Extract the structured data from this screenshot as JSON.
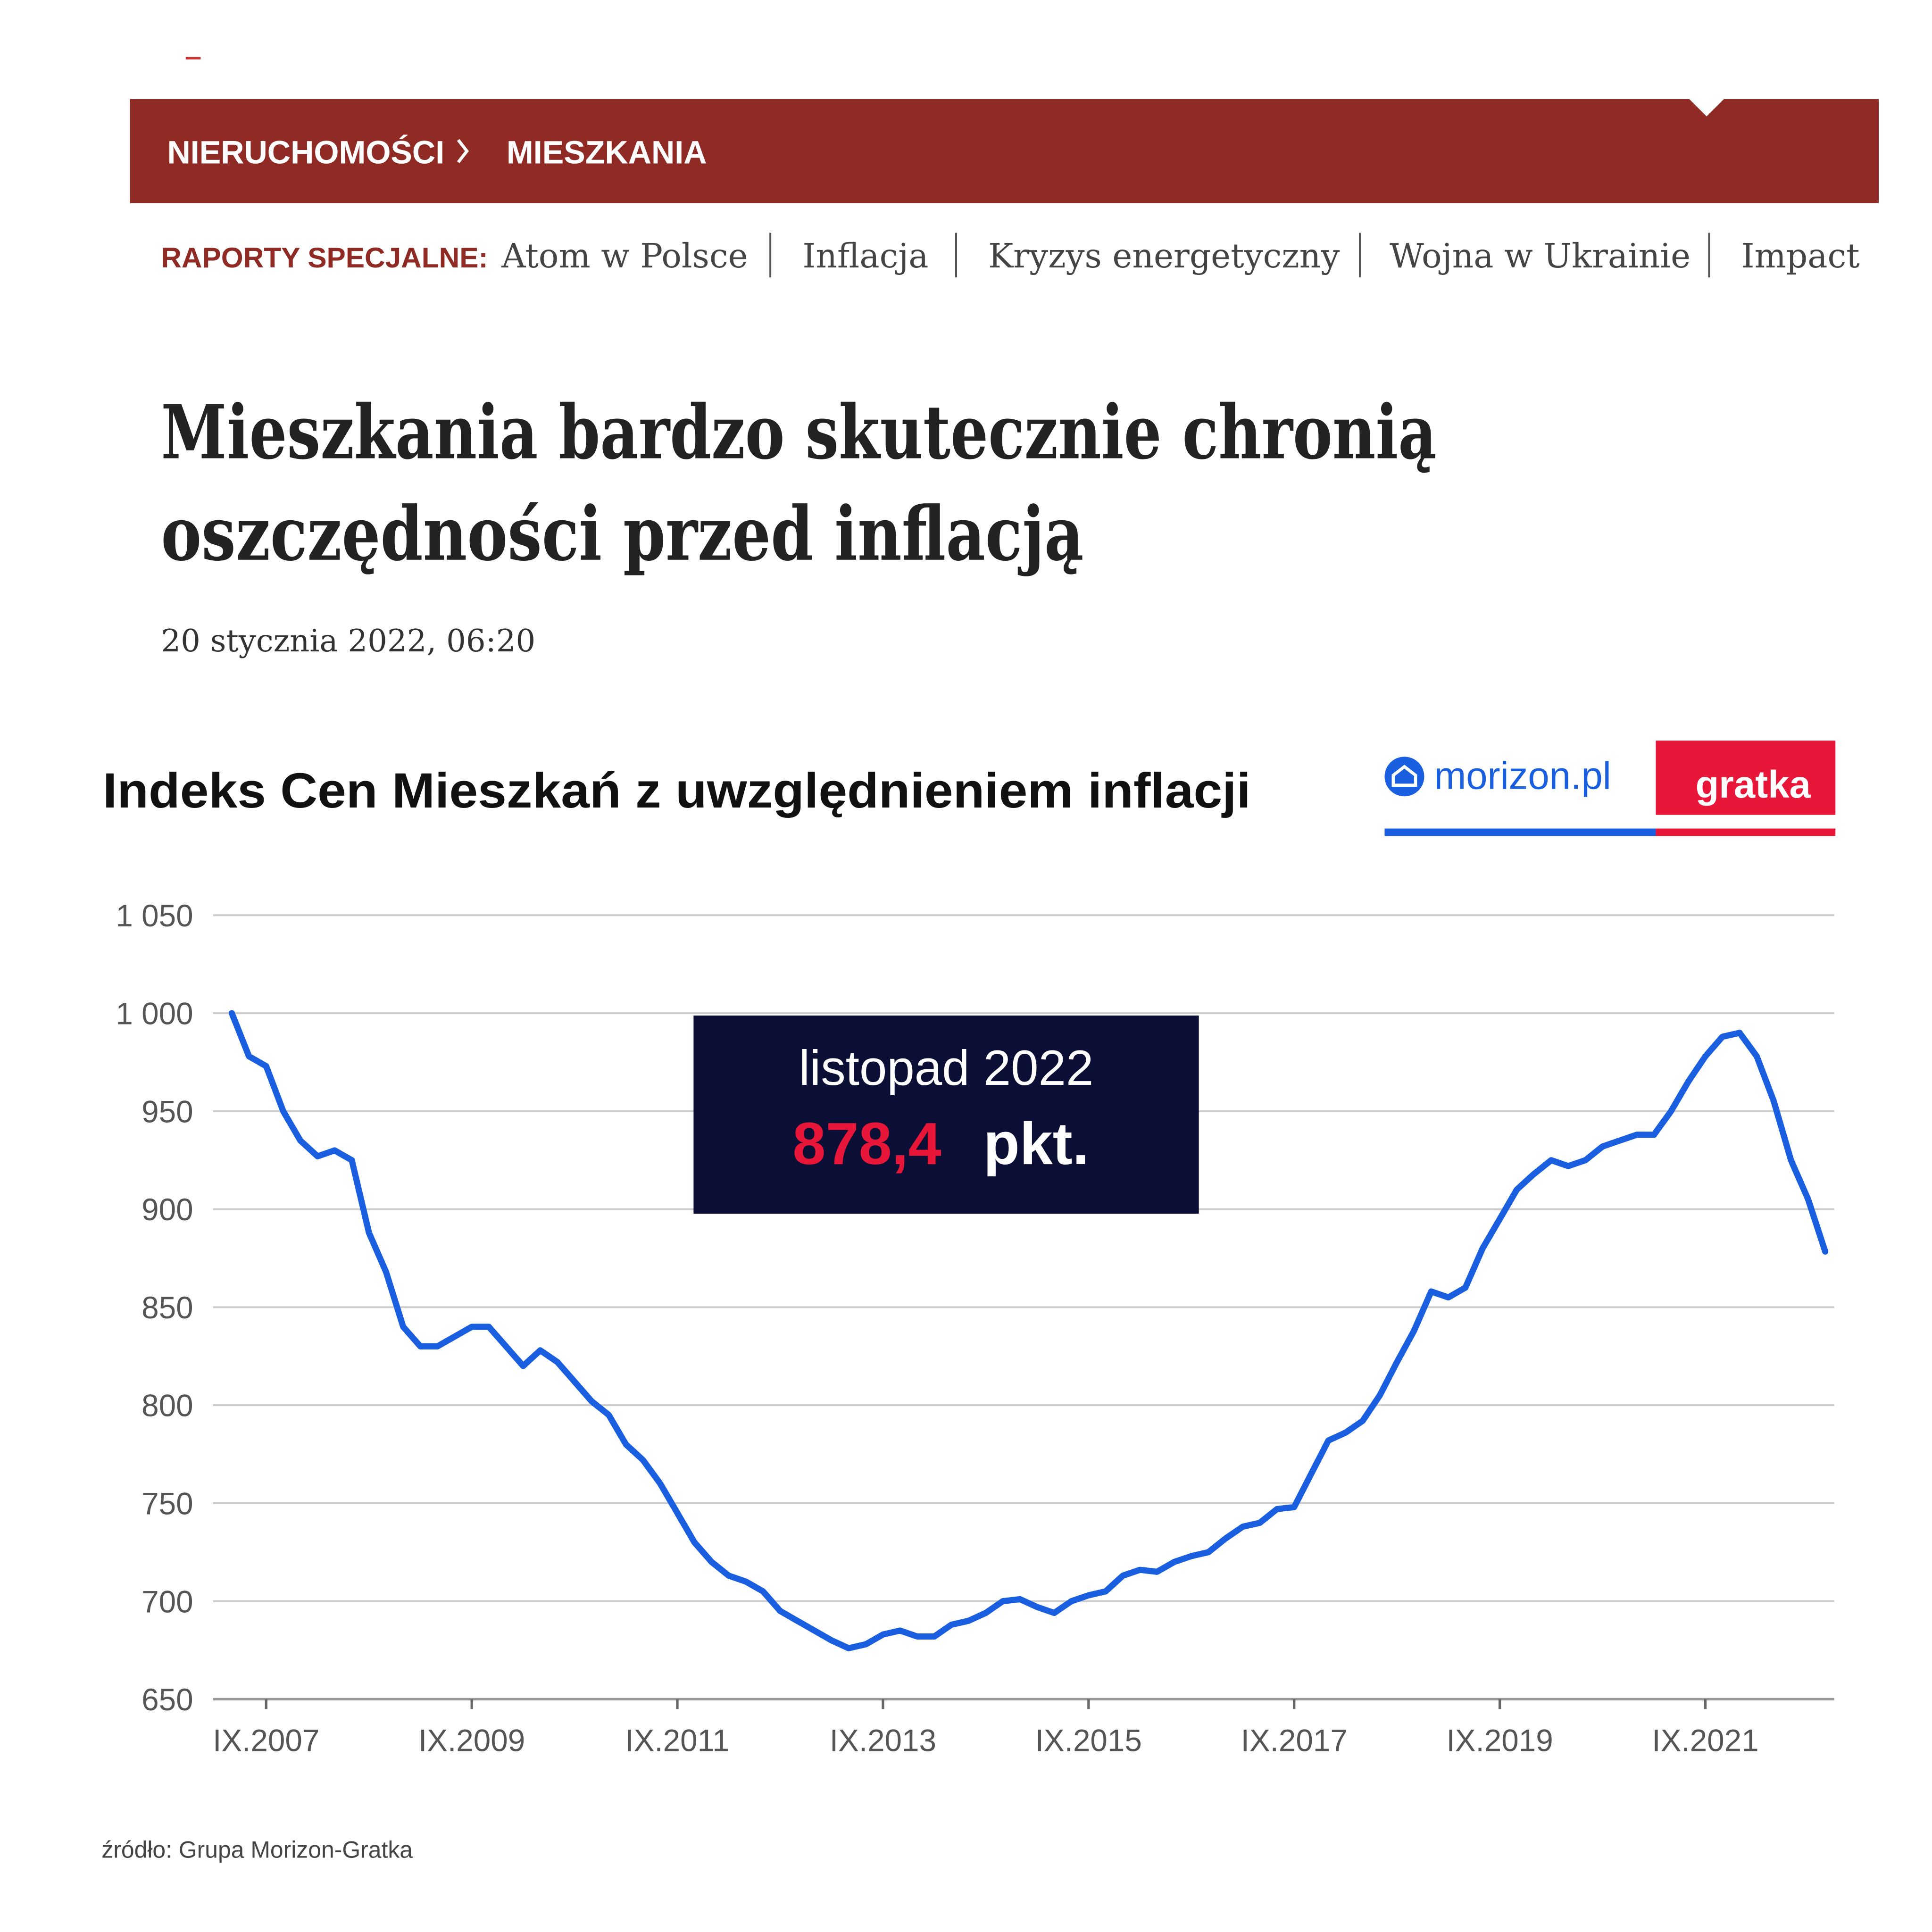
{
  "header": {
    "breadcrumb": [
      "NIERUCHOMOŚCI",
      "MIESZKANIA"
    ]
  },
  "nav": {
    "label": "RAPORTY SPECJALNE:",
    "items": [
      "Atom w Polsce",
      "Inflacja",
      "Kryzys energetyczny",
      "Wojna w Ukrainie",
      "Impact"
    ]
  },
  "article": {
    "title_lines": [
      "Mieszkania bardzo skutecznie chronią",
      "oszczędności przed inflacją"
    ],
    "date": "20 stycznia 2022, 06:20"
  },
  "logos": [
    "morizon.pl",
    "gratka"
  ],
  "chart_data": {
    "type": "line",
    "title": "Indeks Cen Mieszkań z uwzględnieniem inflacji",
    "annotation": {
      "period": "listopad 2022",
      "value": "878,4",
      "unit": "pkt."
    },
    "source": "źródło: Grupa Morizon-Gratka",
    "grid": true,
    "x": [
      2007.333,
      2007.5,
      2007.667,
      2007.833,
      2008,
      2008.167,
      2008.333,
      2008.5,
      2008.667,
      2008.833,
      2009,
      2009.167,
      2009.333,
      2009.5,
      2009.667,
      2009.833,
      2010,
      2010.167,
      2010.333,
      2010.5,
      2010.667,
      2010.833,
      2011,
      2011.167,
      2011.333,
      2011.5,
      2011.667,
      2011.833,
      2012,
      2012.167,
      2012.333,
      2012.5,
      2012.667,
      2012.833,
      2013,
      2013.167,
      2013.333,
      2013.5,
      2013.667,
      2013.833,
      2014,
      2014.167,
      2014.333,
      2014.5,
      2014.667,
      2014.833,
      2015,
      2015.167,
      2015.333,
      2015.5,
      2015.667,
      2015.833,
      2016,
      2016.167,
      2016.333,
      2016.5,
      2016.667,
      2016.833,
      2017,
      2017.167,
      2017.333,
      2017.5,
      2017.667,
      2017.833,
      2018,
      2018.167,
      2018.333,
      2018.5,
      2018.667,
      2018.833,
      2019,
      2019.167,
      2019.333,
      2019.5,
      2019.667,
      2019.833,
      2020,
      2020.167,
      2020.333,
      2020.5,
      2020.667,
      2020.833,
      2021,
      2021.167,
      2021.333,
      2021.5,
      2021.667,
      2021.833,
      2022,
      2022.167,
      2022.333,
      2022.5,
      2022.667,
      2022.833
    ],
    "series": [
      {
        "color": "#1a5fe0",
        "values": [
          1000,
          978,
          973,
          950,
          935,
          927,
          930,
          925,
          888,
          868,
          840,
          830,
          830,
          835,
          840,
          840,
          830,
          820,
          828,
          822,
          812,
          802,
          795,
          780,
          772,
          760,
          745,
          730,
          720,
          713,
          710,
          705,
          695,
          690,
          685,
          680,
          676,
          678,
          683,
          685,
          682,
          682,
          688,
          690,
          694,
          700,
          701,
          697,
          694,
          700,
          703,
          705,
          713,
          716,
          715,
          720,
          723,
          725,
          732,
          738,
          740,
          747,
          748,
          765,
          782,
          786,
          792,
          805,
          822,
          838,
          858,
          855,
          860,
          880,
          895,
          910,
          918,
          925,
          922,
          925,
          932,
          935,
          938,
          938,
          950,
          965,
          978,
          988,
          990,
          978,
          955,
          925,
          905,
          878.4
        ]
      }
    ],
    "xlim": [
      2007.15,
      2022.92
    ],
    "xticks": [
      {
        "value": 2007.667,
        "label": "IX.2007"
      },
      {
        "value": 2009.667,
        "label": "IX.2009"
      },
      {
        "value": 2011.667,
        "label": "IX.2011"
      },
      {
        "value": 2013.667,
        "label": "IX.2013"
      },
      {
        "value": 2015.667,
        "label": "IX.2015"
      },
      {
        "value": 2017.667,
        "label": "IX.2017"
      },
      {
        "value": 2019.667,
        "label": "IX.2019"
      },
      {
        "value": 2021.667,
        "label": "IX.2021"
      }
    ],
    "ylim": [
      650,
      1050
    ],
    "yticks": [
      650,
      700,
      750,
      800,
      850,
      900,
      950,
      {
        "value": 1000,
        "label": "1 000"
      },
      {
        "value": 1050,
        "label": "1 050"
      }
    ]
  }
}
